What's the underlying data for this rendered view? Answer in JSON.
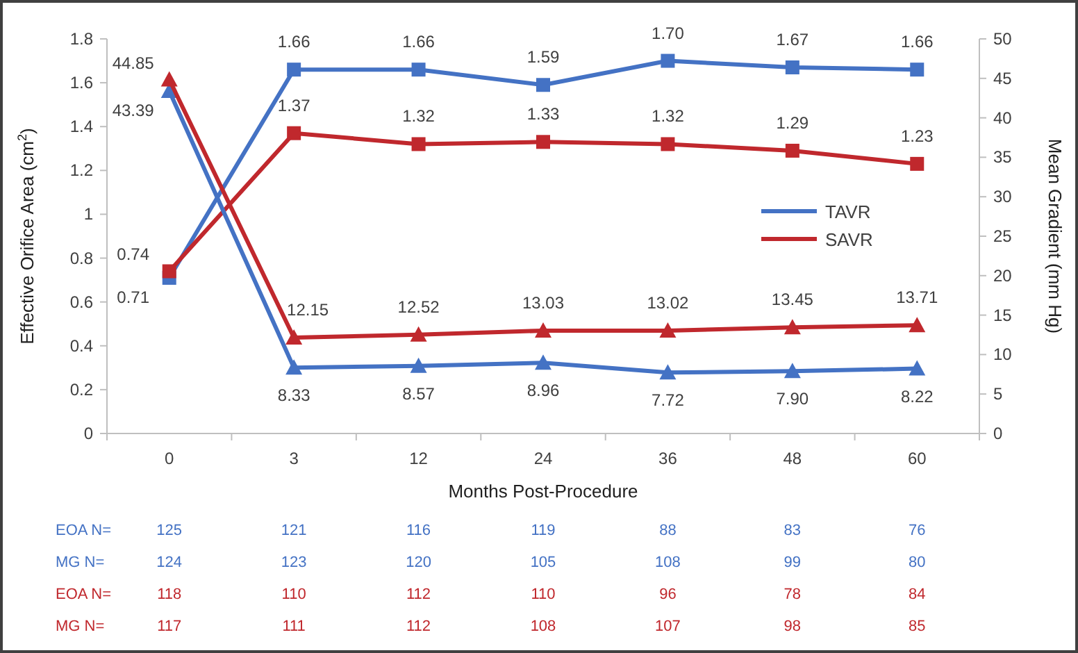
{
  "chart_data": {
    "type": "line",
    "xlabel": "Months Post-Procedure",
    "ylabel": "Effective Orifice Area (cm$^{2}$)",
    "y2label": "Mean Gradient (mm Hg)",
    "categories": [
      "0",
      "3",
      "12",
      "24",
      "36",
      "48",
      "60"
    ],
    "series": [
      {
        "name": "TAVR",
        "color": "#4472c4",
        "marker": "square",
        "values": [
          0.71,
          1.66,
          1.66,
          1.59,
          1.7,
          1.67,
          1.66
        ],
        "value_labels": [
          "0.71",
          "1.66",
          "1.66",
          "1.59",
          "1.70",
          "1.67",
          "1.66"
        ]
      },
      {
        "name": "SAVR",
        "color": "#c0282d",
        "marker": "square",
        "values": [
          0.74,
          1.37,
          1.32,
          1.33,
          1.32,
          1.29,
          1.23
        ],
        "value_labels": [
          "0.74",
          "1.37",
          "1.32",
          "1.33",
          "1.32",
          "1.29",
          "1.23"
        ]
      },
      {
        "color": "#4472c4",
        "marker": "triangle",
        "axis": "y2",
        "values": [
          43.39,
          8.33,
          8.57,
          8.96,
          7.72,
          7.9,
          8.22
        ],
        "value_labels": [
          "43.39",
          "8.33",
          "8.57",
          "8.96",
          "7.72",
          "7.90",
          "8.22"
        ]
      },
      {
        "color": "#c0282d",
        "marker": "triangle",
        "axis": "y2",
        "values": [
          44.85,
          12.15,
          12.52,
          13.03,
          13.02,
          13.45,
          13.71
        ],
        "value_labels": [
          "44.85",
          "12.15",
          "12.52",
          "13.03",
          "13.02",
          "13.45",
          "13.71"
        ]
      }
    ],
    "ylim": [
      0,
      1.8
    ],
    "yticks": [
      0,
      0.2,
      0.4,
      0.6,
      0.8,
      1,
      1.2,
      1.4,
      1.6,
      1.8
    ],
    "y2lim": [
      0,
      50
    ],
    "y2ticks": [
      0,
      5,
      10,
      15,
      20,
      25,
      30,
      35,
      40,
      45,
      50
    ],
    "legend": "right",
    "grid": false,
    "annotations": [
      "EOA N=",
      "125",
      "121",
      "116",
      "119",
      "88",
      "83",
      "76",
      "MG N=",
      "124",
      "123",
      "120",
      "105",
      "108",
      "99",
      "80",
      "EOA N=",
      "118",
      "110",
      "112",
      "110",
      "96",
      "78",
      "84",
      "MG N=",
      "117",
      "111",
      "112",
      "108",
      "107",
      "98",
      "85"
    ]
  }
}
